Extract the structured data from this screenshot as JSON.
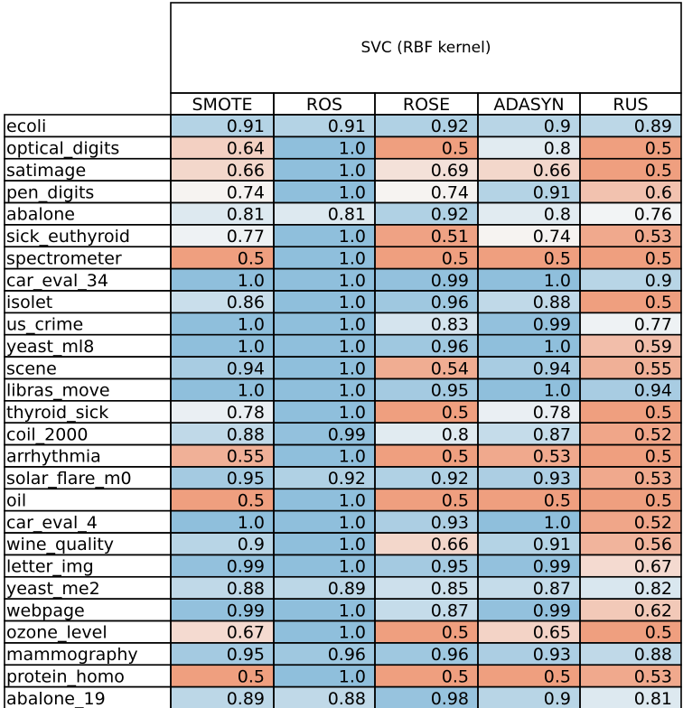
{
  "chart_data": {
    "type": "heatmap",
    "title": "SVC (RBF kernel)",
    "columns": [
      "SMOTE",
      "ROS",
      "ROSE",
      "ADASYN",
      "RUS"
    ],
    "rows": [
      {
        "label": "ecoli",
        "values": [
          "0.91",
          "0.91",
          "0.92",
          "0.9",
          "0.89"
        ]
      },
      {
        "label": "optical_digits",
        "values": [
          "0.64",
          "1.0",
          "0.5",
          "0.8",
          "0.5"
        ]
      },
      {
        "label": "satimage",
        "values": [
          "0.66",
          "1.0",
          "0.69",
          "0.66",
          "0.5"
        ]
      },
      {
        "label": "pen_digits",
        "values": [
          "0.74",
          "1.0",
          "0.74",
          "0.91",
          "0.6"
        ]
      },
      {
        "label": "abalone",
        "values": [
          "0.81",
          "0.81",
          "0.92",
          "0.8",
          "0.76"
        ]
      },
      {
        "label": "sick_euthyroid",
        "values": [
          "0.77",
          "1.0",
          "0.51",
          "0.74",
          "0.53"
        ]
      },
      {
        "label": "spectrometer",
        "values": [
          "0.5",
          "1.0",
          "0.5",
          "0.5",
          "0.5"
        ]
      },
      {
        "label": "car_eval_34",
        "values": [
          "1.0",
          "1.0",
          "0.99",
          "1.0",
          "0.9"
        ]
      },
      {
        "label": "isolet",
        "values": [
          "0.86",
          "1.0",
          "0.96",
          "0.88",
          "0.5"
        ]
      },
      {
        "label": "us_crime",
        "values": [
          "1.0",
          "1.0",
          "0.83",
          "0.99",
          "0.77"
        ]
      },
      {
        "label": "yeast_ml8",
        "values": [
          "1.0",
          "1.0",
          "0.96",
          "1.0",
          "0.59"
        ]
      },
      {
        "label": "scene",
        "values": [
          "0.94",
          "1.0",
          "0.54",
          "0.94",
          "0.55"
        ]
      },
      {
        "label": "libras_move",
        "values": [
          "1.0",
          "1.0",
          "0.95",
          "1.0",
          "0.94"
        ]
      },
      {
        "label": "thyroid_sick",
        "values": [
          "0.78",
          "1.0",
          "0.5",
          "0.78",
          "0.5"
        ]
      },
      {
        "label": "coil_2000",
        "values": [
          "0.88",
          "0.99",
          "0.8",
          "0.87",
          "0.52"
        ]
      },
      {
        "label": "arrhythmia",
        "values": [
          "0.55",
          "1.0",
          "0.5",
          "0.53",
          "0.5"
        ]
      },
      {
        "label": "solar_flare_m0",
        "values": [
          "0.95",
          "0.92",
          "0.92",
          "0.93",
          "0.53"
        ]
      },
      {
        "label": "oil",
        "values": [
          "0.5",
          "1.0",
          "0.5",
          "0.5",
          "0.5"
        ]
      },
      {
        "label": "car_eval_4",
        "values": [
          "1.0",
          "1.0",
          "0.93",
          "1.0",
          "0.52"
        ]
      },
      {
        "label": "wine_quality",
        "values": [
          "0.9",
          "1.0",
          "0.66",
          "0.91",
          "0.56"
        ]
      },
      {
        "label": "letter_img",
        "values": [
          "0.99",
          "1.0",
          "0.95",
          "0.99",
          "0.67"
        ]
      },
      {
        "label": "yeast_me2",
        "values": [
          "0.88",
          "0.89",
          "0.85",
          "0.87",
          "0.82"
        ]
      },
      {
        "label": "webpage",
        "values": [
          "0.99",
          "1.0",
          "0.87",
          "0.99",
          "0.62"
        ]
      },
      {
        "label": "ozone_level",
        "values": [
          "0.67",
          "1.0",
          "0.5",
          "0.65",
          "0.5"
        ]
      },
      {
        "label": "mammography",
        "values": [
          "0.95",
          "0.96",
          "0.96",
          "0.93",
          "0.88"
        ]
      },
      {
        "label": "protein_homo",
        "values": [
          "0.5",
          "1.0",
          "0.5",
          "0.5",
          "0.53"
        ]
      },
      {
        "label": "abalone_19",
        "values": [
          "0.89",
          "0.88",
          "0.98",
          "0.9",
          "0.81"
        ]
      }
    ],
    "value_range": [
      0.5,
      1.0
    ],
    "colors": {
      "low": "#ef9f7f",
      "mid": "#f6f6f6",
      "high": "#8fbfdc"
    }
  }
}
